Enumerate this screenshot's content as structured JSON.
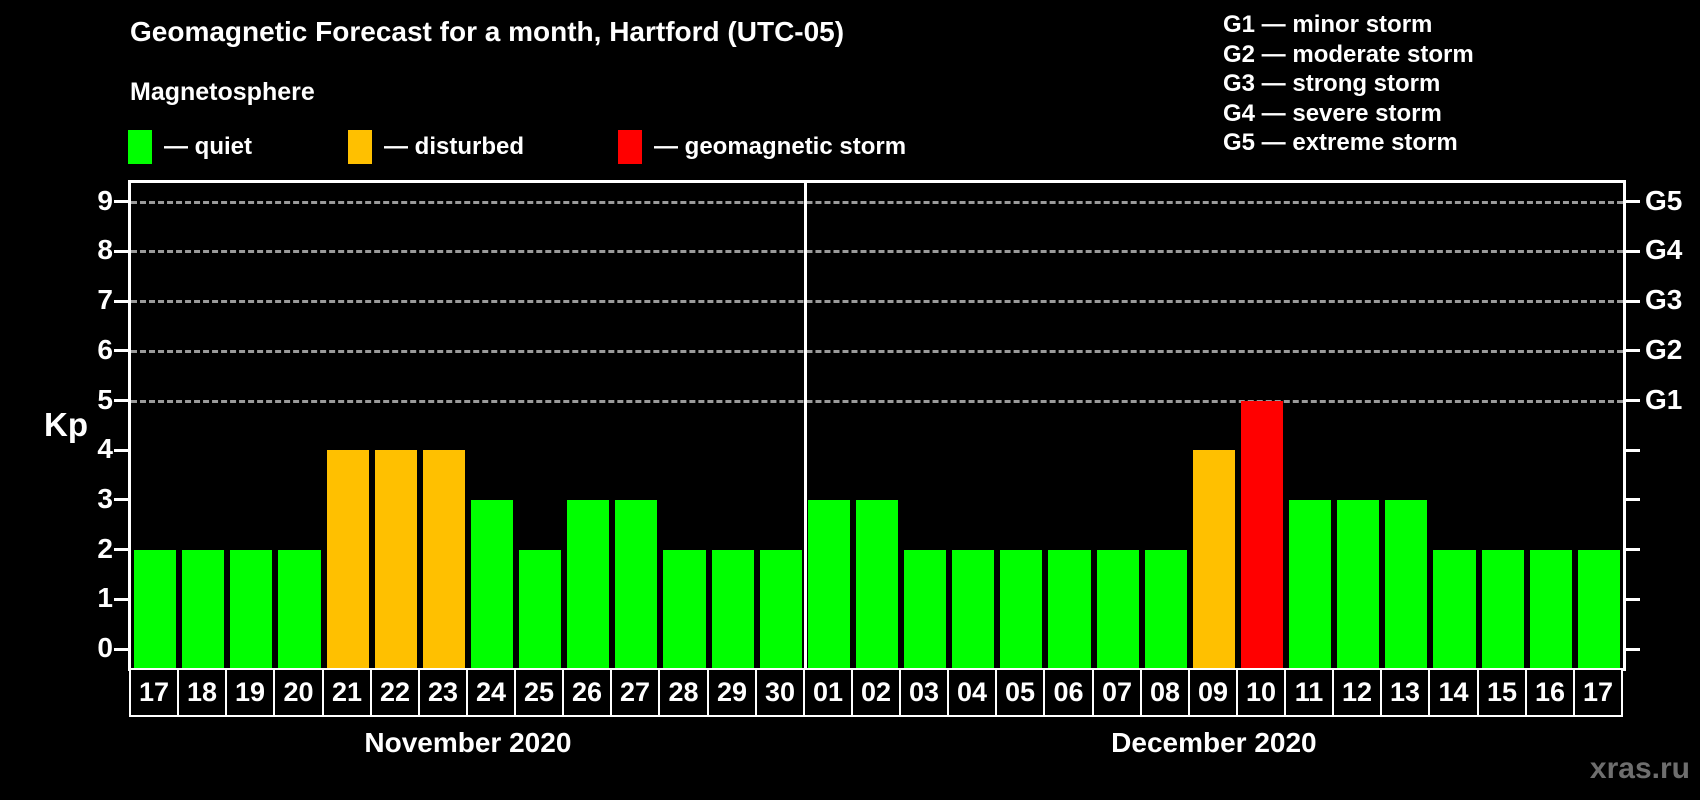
{
  "title": "Geomagnetic Forecast for a month, Hartford (UTC-05)",
  "legend": {
    "heading": "Magnetosphere",
    "items": [
      {
        "state": "quiet",
        "label": "— quiet",
        "color": "#00ff00"
      },
      {
        "state": "disturbed",
        "label": "— disturbed",
        "color": "#ffc000"
      },
      {
        "state": "storm",
        "label": "— geomagnetic storm",
        "color": "#ff0000"
      }
    ]
  },
  "g_storm_legend": [
    "G1 — minor storm",
    "G2 — moderate storm",
    "G3 — strong storm",
    "G4 — severe storm",
    "G5 — extreme storm"
  ],
  "axis": {
    "y_label": "Kp",
    "y_ticks": [
      "0",
      "1",
      "2",
      "3",
      "4",
      "5",
      "6",
      "7",
      "8",
      "9"
    ],
    "g_levels": [
      {
        "kp": 5,
        "label": "G1"
      },
      {
        "kp": 6,
        "label": "G2"
      },
      {
        "kp": 7,
        "label": "G3"
      },
      {
        "kp": 8,
        "label": "G4"
      },
      {
        "kp": 9,
        "label": "G5"
      }
    ]
  },
  "watermark": "xras.ru",
  "chart_data": {
    "type": "bar",
    "ylabel": "Kp",
    "ylim": [
      0,
      9
    ],
    "grid_levels": [
      5,
      6,
      7,
      8,
      9
    ],
    "grid_style": "dashed",
    "legend_position": "top-left",
    "months": [
      {
        "label": "November 2020",
        "days": [
          {
            "day": "17",
            "kp": 2,
            "state": "quiet"
          },
          {
            "day": "18",
            "kp": 2,
            "state": "quiet"
          },
          {
            "day": "19",
            "kp": 2,
            "state": "quiet"
          },
          {
            "day": "20",
            "kp": 2,
            "state": "quiet"
          },
          {
            "day": "21",
            "kp": 4,
            "state": "disturbed"
          },
          {
            "day": "22",
            "kp": 4,
            "state": "disturbed"
          },
          {
            "day": "23",
            "kp": 4,
            "state": "disturbed"
          },
          {
            "day": "24",
            "kp": 3,
            "state": "quiet"
          },
          {
            "day": "25",
            "kp": 2,
            "state": "quiet"
          },
          {
            "day": "26",
            "kp": 3,
            "state": "quiet"
          },
          {
            "day": "27",
            "kp": 3,
            "state": "quiet"
          },
          {
            "day": "28",
            "kp": 2,
            "state": "quiet"
          },
          {
            "day": "29",
            "kp": 2,
            "state": "quiet"
          },
          {
            "day": "30",
            "kp": 2,
            "state": "quiet"
          }
        ]
      },
      {
        "label": "December 2020",
        "days": [
          {
            "day": "01",
            "kp": 3,
            "state": "quiet"
          },
          {
            "day": "02",
            "kp": 3,
            "state": "quiet"
          },
          {
            "day": "03",
            "kp": 2,
            "state": "quiet"
          },
          {
            "day": "04",
            "kp": 2,
            "state": "quiet"
          },
          {
            "day": "05",
            "kp": 2,
            "state": "quiet"
          },
          {
            "day": "06",
            "kp": 2,
            "state": "quiet"
          },
          {
            "day": "07",
            "kp": 2,
            "state": "quiet"
          },
          {
            "day": "08",
            "kp": 2,
            "state": "quiet"
          },
          {
            "day": "09",
            "kp": 4,
            "state": "disturbed"
          },
          {
            "day": "10",
            "kp": 5,
            "state": "storm"
          },
          {
            "day": "11",
            "kp": 3,
            "state": "quiet"
          },
          {
            "day": "12",
            "kp": 3,
            "state": "quiet"
          },
          {
            "day": "13",
            "kp": 3,
            "state": "quiet"
          },
          {
            "day": "14",
            "kp": 2,
            "state": "quiet"
          },
          {
            "day": "15",
            "kp": 2,
            "state": "quiet"
          },
          {
            "day": "16",
            "kp": 2,
            "state": "quiet"
          },
          {
            "day": "17",
            "kp": 2,
            "state": "quiet"
          }
        ]
      }
    ]
  }
}
